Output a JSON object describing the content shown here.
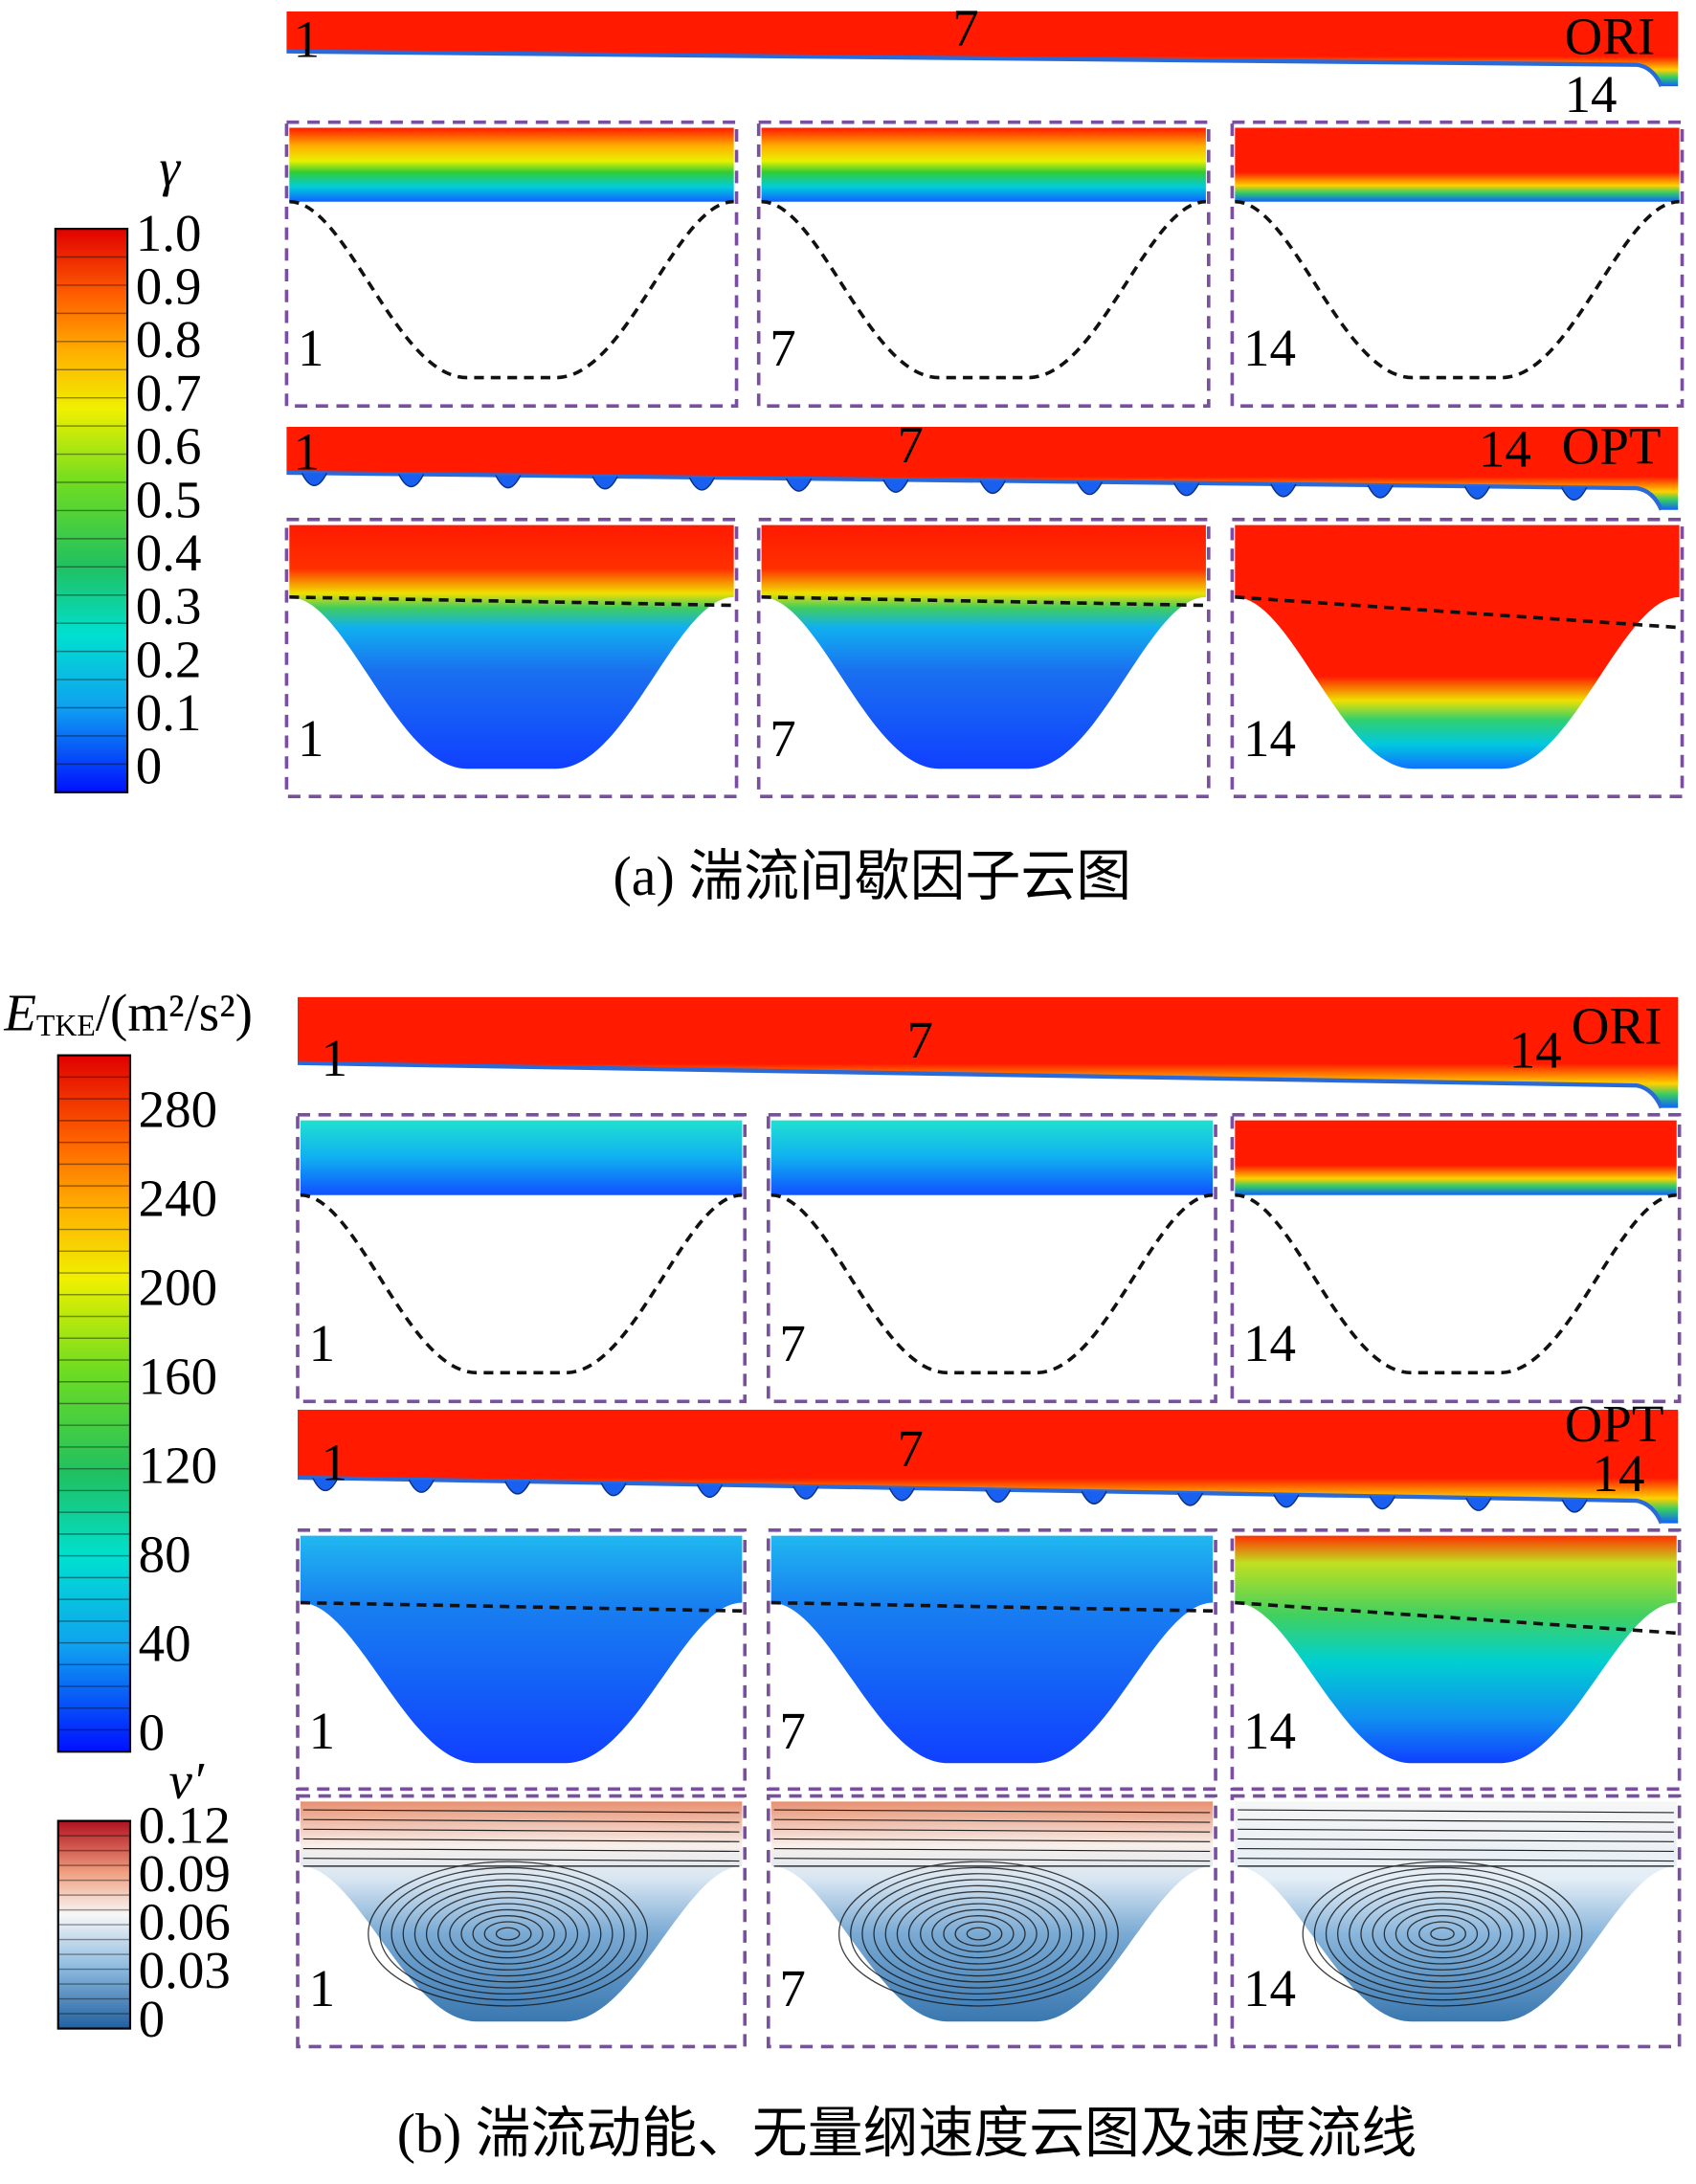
{
  "panel_a": {
    "colorbar": {
      "symbol": "γ",
      "ticks": [
        "1.0",
        "0.9",
        "0.8",
        "0.7",
        "0.6",
        "0.5",
        "0.4",
        "0.3",
        "0.2",
        "0.1",
        "0"
      ]
    },
    "ori": {
      "tag": "ORI",
      "stations": [
        "1",
        "7",
        "14"
      ]
    },
    "ori_zoom": [
      "1",
      "7",
      "14"
    ],
    "opt": {
      "tag": "OPT",
      "stations": [
        "1",
        "7",
        "14"
      ]
    },
    "opt_zoom": [
      "1",
      "7",
      "14"
    ],
    "caption": "(a)  湍流间歇因子云图"
  },
  "panel_b": {
    "colorbar": {
      "symbol": "E",
      "symbol_sub": "TKE",
      "unit": "/(m²/s²)",
      "ticks": [
        "280",
        "240",
        "200",
        "160",
        "120",
        "80",
        "40",
        "0"
      ]
    },
    "velocity_colorbar": {
      "symbol": "v′",
      "ticks": [
        "0.12",
        "0.09",
        "0.06",
        "0.03",
        "0"
      ]
    },
    "ori": {
      "tag": "ORI",
      "stations": [
        "1",
        "7",
        "14"
      ]
    },
    "ori_zoom": [
      "1",
      "7",
      "14"
    ],
    "opt": {
      "tag": "OPT",
      "stations": [
        "1",
        "7",
        "14"
      ]
    },
    "opt_zoom": [
      "1",
      "7",
      "14"
    ],
    "streamline_zoom": [
      "1",
      "7",
      "14"
    ],
    "caption": "(b)  湍流动能、无量纲速度云图及速度流线"
  }
}
